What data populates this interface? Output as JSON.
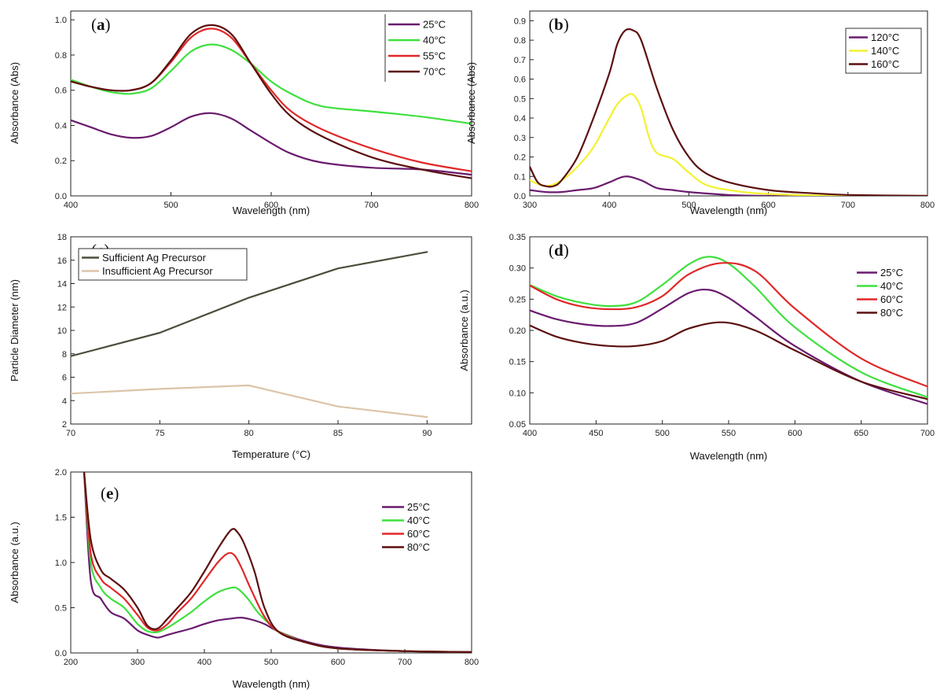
{
  "chart_data": [
    {
      "id": "a",
      "type": "line",
      "panel_label": "a",
      "xlabel": "Wavelength (nm)",
      "ylabel": "Absorbance (Abs)",
      "xlim": [
        400,
        800
      ],
      "ylim": [
        0,
        1.05
      ],
      "xticks": [
        400,
        500,
        600,
        700,
        800
      ],
      "yticks": [
        0.0,
        0.2,
        0.4,
        0.6,
        0.8,
        1.0
      ],
      "ytick_labels": [
        "0.0",
        "0.2",
        "0.4",
        "0.6",
        "0.8",
        "1.0"
      ],
      "legend_position": "top-right",
      "series": [
        {
          "name": "25°C",
          "color": "#6a1b6e",
          "x": [
            400,
            420,
            440,
            460,
            480,
            500,
            520,
            540,
            560,
            580,
            600,
            620,
            650,
            700,
            750,
            800
          ],
          "y": [
            0.43,
            0.39,
            0.35,
            0.33,
            0.34,
            0.39,
            0.45,
            0.47,
            0.44,
            0.37,
            0.3,
            0.24,
            0.19,
            0.16,
            0.15,
            0.12
          ]
        },
        {
          "name": "40°C",
          "color": "#3ee03e",
          "x": [
            400,
            420,
            440,
            460,
            480,
            500,
            520,
            540,
            560,
            580,
            600,
            620,
            650,
            700,
            750,
            800
          ],
          "y": [
            0.66,
            0.62,
            0.59,
            0.58,
            0.61,
            0.71,
            0.82,
            0.86,
            0.83,
            0.75,
            0.65,
            0.58,
            0.51,
            0.48,
            0.45,
            0.41
          ]
        },
        {
          "name": "55°C",
          "color": "#e02828",
          "x": [
            400,
            420,
            440,
            460,
            480,
            500,
            520,
            540,
            560,
            580,
            600,
            620,
            650,
            700,
            750,
            800
          ],
          "y": [
            0.65,
            0.62,
            0.6,
            0.6,
            0.64,
            0.76,
            0.9,
            0.95,
            0.9,
            0.75,
            0.6,
            0.48,
            0.38,
            0.27,
            0.19,
            0.14
          ]
        },
        {
          "name": "70°C",
          "color": "#5c0f0f",
          "x": [
            400,
            420,
            440,
            460,
            480,
            500,
            520,
            540,
            560,
            580,
            600,
            620,
            650,
            700,
            750,
            800
          ],
          "y": [
            0.65,
            0.62,
            0.6,
            0.6,
            0.64,
            0.77,
            0.92,
            0.97,
            0.92,
            0.75,
            0.58,
            0.45,
            0.34,
            0.22,
            0.15,
            0.1
          ]
        }
      ]
    },
    {
      "id": "b",
      "type": "line",
      "panel_label": "b",
      "xlabel": "Wavelength (nm)",
      "ylabel": "Absorbance (Abs)",
      "xlim": [
        300,
        800
      ],
      "ylim": [
        0,
        0.95
      ],
      "xticks": [
        300,
        400,
        500,
        600,
        700,
        800
      ],
      "yticks": [
        0.0,
        0.1,
        0.2,
        0.3,
        0.4,
        0.5,
        0.6,
        0.7,
        0.8,
        0.9
      ],
      "ytick_labels": [
        "0.0",
        "0.1",
        "0.2",
        "0.3",
        "0.4",
        "0.5",
        "0.6",
        "0.7",
        "0.8",
        "0.9"
      ],
      "legend_position": "top-right",
      "series": [
        {
          "name": "120°C",
          "color": "#6a1b6e",
          "x": [
            300,
            320,
            340,
            360,
            380,
            400,
            420,
            440,
            460,
            480,
            500,
            550,
            600,
            700,
            800
          ],
          "y": [
            0.03,
            0.02,
            0.02,
            0.03,
            0.04,
            0.07,
            0.1,
            0.08,
            0.04,
            0.03,
            0.02,
            0.005,
            0.0,
            0.0,
            0.0
          ]
        },
        {
          "name": "140°C",
          "color": "#f2f230",
          "x": [
            300,
            320,
            340,
            360,
            380,
            400,
            410,
            420,
            430,
            440,
            450,
            460,
            480,
            500,
            520,
            550,
            600,
            700,
            800
          ],
          "y": [
            0.08,
            0.05,
            0.08,
            0.15,
            0.25,
            0.4,
            0.47,
            0.51,
            0.52,
            0.45,
            0.3,
            0.22,
            0.19,
            0.12,
            0.06,
            0.03,
            0.01,
            0.0,
            0.0
          ]
        },
        {
          "name": "160°C",
          "color": "#5c0f0f",
          "x": [
            300,
            310,
            320,
            330,
            340,
            360,
            380,
            400,
            410,
            420,
            430,
            440,
            460,
            480,
            500,
            520,
            550,
            600,
            650,
            700,
            800
          ],
          "y": [
            0.15,
            0.07,
            0.05,
            0.05,
            0.08,
            0.2,
            0.4,
            0.63,
            0.78,
            0.85,
            0.85,
            0.8,
            0.55,
            0.34,
            0.2,
            0.12,
            0.07,
            0.03,
            0.015,
            0.005,
            0.0
          ]
        }
      ]
    },
    {
      "id": "c",
      "type": "line",
      "panel_label": "c",
      "xlabel": "Temperature (°C)",
      "ylabel": "Particle Diameter (nm)",
      "xlim": [
        70,
        92.5
      ],
      "ylim": [
        2,
        18
      ],
      "xticks": [
        70,
        75,
        80,
        85,
        90
      ],
      "yticks": [
        2,
        4,
        6,
        8,
        10,
        12,
        14,
        16,
        18
      ],
      "ytick_labels": [
        "2",
        "4",
        "6",
        "8",
        "10",
        "12",
        "14",
        "16",
        "18"
      ],
      "legend_position": "top-left",
      "series": [
        {
          "name": "Sufficient Ag Precursor",
          "color": "#4d4d3d",
          "x": [
            70,
            75,
            80,
            85,
            90
          ],
          "y": [
            7.8,
            9.8,
            12.8,
            15.3,
            16.7
          ]
        },
        {
          "name": "Insufficient Ag Precursor",
          "color": "#dcc4a8",
          "x": [
            70,
            75,
            80,
            85,
            90
          ],
          "y": [
            4.6,
            5.0,
            5.3,
            3.5,
            2.6
          ]
        }
      ]
    },
    {
      "id": "d",
      "type": "line",
      "panel_label": "d",
      "xlabel": "Wavelength (nm)",
      "ylabel": "Absorbance (a.u.)",
      "xlim": [
        400,
        700
      ],
      "ylim": [
        0.05,
        0.35
      ],
      "xticks": [
        400,
        450,
        500,
        550,
        600,
        650,
        700
      ],
      "yticks": [
        0.05,
        0.1,
        0.15,
        0.2,
        0.25,
        0.3,
        0.35
      ],
      "ytick_labels": [
        "0.05",
        "0.10",
        "0.15",
        "0.20",
        "0.25",
        "0.30",
        "0.35"
      ],
      "legend_position": "top-right",
      "series": [
        {
          "name": "25°C",
          "color": "#6a1b6e",
          "x": [
            400,
            420,
            440,
            460,
            480,
            500,
            520,
            535,
            550,
            570,
            600,
            650,
            700
          ],
          "y": [
            0.232,
            0.218,
            0.21,
            0.207,
            0.212,
            0.235,
            0.26,
            0.265,
            0.252,
            0.222,
            0.175,
            0.118,
            0.082
          ]
        },
        {
          "name": "40°C",
          "color": "#3ee03e",
          "x": [
            400,
            420,
            440,
            460,
            480,
            500,
            520,
            535,
            550,
            570,
            600,
            650,
            700
          ],
          "y": [
            0.273,
            0.255,
            0.244,
            0.239,
            0.245,
            0.273,
            0.306,
            0.318,
            0.307,
            0.27,
            0.205,
            0.133,
            0.093
          ]
        },
        {
          "name": "60°C",
          "color": "#e02828",
          "x": [
            400,
            420,
            440,
            460,
            480,
            500,
            520,
            545,
            570,
            600,
            650,
            700
          ],
          "y": [
            0.272,
            0.25,
            0.238,
            0.234,
            0.237,
            0.255,
            0.29,
            0.308,
            0.295,
            0.235,
            0.155,
            0.11
          ]
        },
        {
          "name": "80°C",
          "color": "#5c0f0f",
          "x": [
            400,
            420,
            440,
            460,
            480,
            500,
            520,
            545,
            570,
            600,
            650,
            700
          ],
          "y": [
            0.208,
            0.19,
            0.18,
            0.175,
            0.175,
            0.183,
            0.203,
            0.213,
            0.2,
            0.168,
            0.118,
            0.09
          ]
        }
      ]
    },
    {
      "id": "e",
      "type": "line",
      "panel_label": "e",
      "xlabel": "Wavelength (nm)",
      "ylabel": "Absorbance (a.u.)",
      "xlim": [
        200,
        800
      ],
      "ylim": [
        0,
        2.0
      ],
      "xticks": [
        200,
        300,
        400,
        500,
        600,
        700,
        800
      ],
      "yticks": [
        0.0,
        0.5,
        1.0,
        1.5,
        2.0
      ],
      "ytick_labels": [
        "0.0",
        "0.5",
        "1.0",
        "1.5",
        "2.0"
      ],
      "legend_position": "top-right",
      "series": [
        {
          "name": "25°C",
          "color": "#6a1b6e",
          "x": [
            220,
            230,
            245,
            260,
            280,
            300,
            315,
            330,
            345,
            360,
            380,
            400,
            420,
            440,
            455,
            470,
            490,
            510,
            550,
            600,
            700,
            800
          ],
          "y": [
            2.0,
            0.8,
            0.6,
            0.45,
            0.38,
            0.25,
            0.2,
            0.17,
            0.2,
            0.23,
            0.27,
            0.32,
            0.36,
            0.38,
            0.39,
            0.37,
            0.32,
            0.24,
            0.13,
            0.06,
            0.02,
            0.01
          ]
        },
        {
          "name": "40°C",
          "color": "#3ee03e",
          "x": [
            220,
            230,
            245,
            260,
            280,
            300,
            315,
            330,
            345,
            360,
            380,
            400,
            420,
            440,
            450,
            465,
            480,
            500,
            510,
            550,
            600,
            700,
            800
          ],
          "y": [
            2.0,
            1.0,
            0.72,
            0.6,
            0.5,
            0.32,
            0.24,
            0.23,
            0.28,
            0.35,
            0.45,
            0.57,
            0.67,
            0.72,
            0.71,
            0.6,
            0.45,
            0.3,
            0.24,
            0.12,
            0.05,
            0.02,
            0.01
          ]
        },
        {
          "name": "60°C",
          "color": "#e02828",
          "x": [
            220,
            230,
            245,
            260,
            280,
            300,
            315,
            330,
            345,
            360,
            380,
            400,
            420,
            435,
            445,
            455,
            470,
            490,
            510,
            550,
            600,
            700,
            800
          ],
          "y": [
            2.0,
            1.1,
            0.82,
            0.72,
            0.6,
            0.42,
            0.28,
            0.25,
            0.32,
            0.45,
            0.6,
            0.8,
            1.0,
            1.1,
            1.08,
            0.95,
            0.7,
            0.4,
            0.24,
            0.12,
            0.05,
            0.02,
            0.01
          ]
        },
        {
          "name": "80°C",
          "color": "#5c0f0f",
          "x": [
            220,
            230,
            245,
            260,
            280,
            300,
            315,
            330,
            345,
            360,
            380,
            400,
            420,
            440,
            450,
            460,
            475,
            490,
            510,
            550,
            600,
            700,
            800
          ],
          "y": [
            2.0,
            1.25,
            0.92,
            0.82,
            0.7,
            0.5,
            0.3,
            0.27,
            0.38,
            0.5,
            0.67,
            0.9,
            1.15,
            1.36,
            1.33,
            1.2,
            0.9,
            0.5,
            0.24,
            0.12,
            0.05,
            0.02,
            0.01
          ]
        }
      ]
    }
  ]
}
